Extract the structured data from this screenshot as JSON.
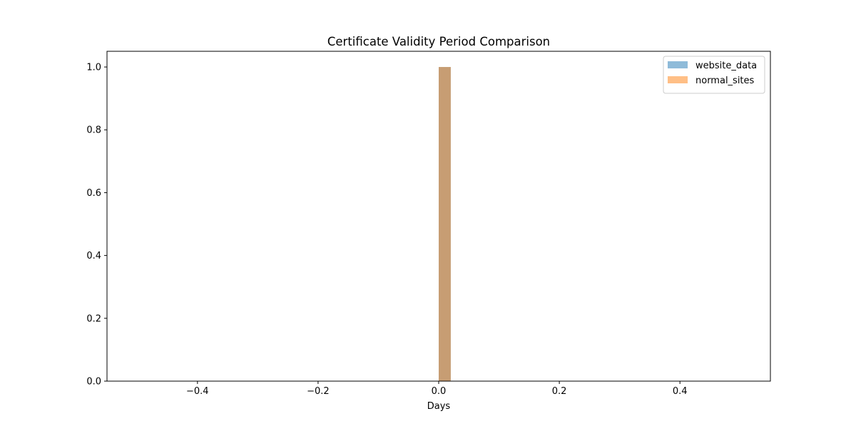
{
  "chart_data": {
    "type": "bar",
    "title": "Certificate Validity Period Comparison",
    "xlabel": "Days",
    "ylabel": "",
    "xlim": [
      -0.55,
      0.55
    ],
    "ylim": [
      0,
      1.05
    ],
    "x_ticks": [
      -0.4,
      -0.2,
      0.0,
      0.2,
      0.4
    ],
    "x_tick_labels": [
      "−0.4",
      "−0.2",
      "0.0",
      "0.2",
      "0.4"
    ],
    "y_ticks": [
      0.0,
      0.2,
      0.4,
      0.6,
      0.8,
      1.0
    ],
    "y_tick_labels": [
      "0.0",
      "0.2",
      "0.4",
      "0.6",
      "0.8",
      "1.0"
    ],
    "grid": false,
    "legend_position": "top-right",
    "series": [
      {
        "name": "website_data",
        "color": "#1f77b4",
        "opacity": 0.5,
        "bins": [
          {
            "x0": 0.0,
            "x1": 0.02,
            "value": 1.0
          }
        ]
      },
      {
        "name": "normal_sites",
        "color": "#ff7f0e",
        "opacity": 0.5,
        "bins": [
          {
            "x0": 0.0,
            "x1": 0.02,
            "value": 1.0
          }
        ]
      }
    ]
  }
}
